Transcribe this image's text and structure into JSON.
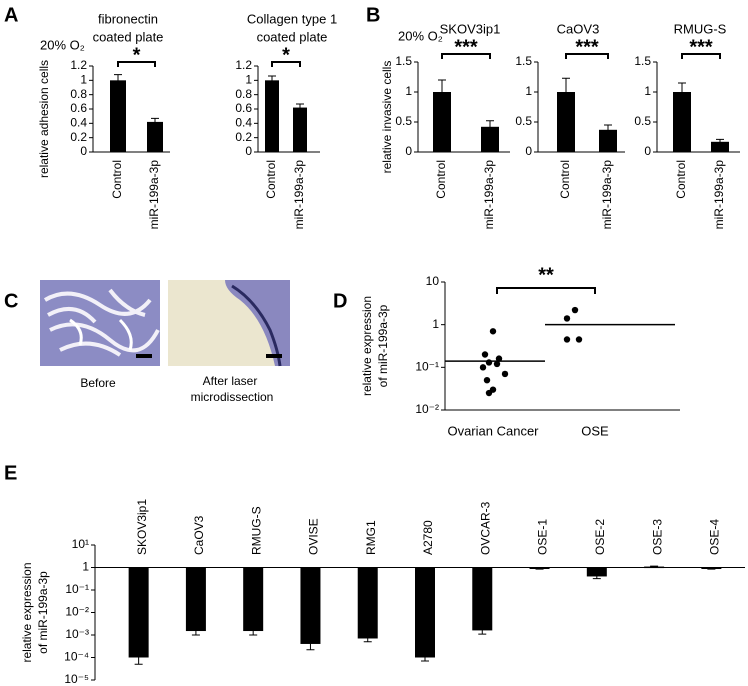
{
  "panels": [
    {
      "label": "A",
      "condition": "20% O₂"
    },
    {
      "label": "B",
      "condition": "20% O₂"
    },
    {
      "label": "C",
      "captions": [
        [
          "Before"
        ],
        [
          "After laser",
          "microdissection"
        ]
      ]
    },
    {
      "label": "D"
    },
    {
      "label": "E"
    }
  ],
  "chart_data": [
    {
      "type": "bar",
      "title": [
        "fibronectin",
        "coated plate"
      ],
      "ylabel": [
        "relative adhesion cells"
      ],
      "categories": [
        "Control",
        "miR-199a-3p"
      ],
      "values": [
        1.0,
        0.42
      ],
      "errors": [
        0.08,
        0.05
      ],
      "color": "#000000",
      "ylim": [
        0,
        1.2
      ],
      "yticks": [
        0,
        0.2,
        0.4,
        0.6,
        0.8,
        1,
        1.2
      ],
      "significance": "*"
    },
    {
      "type": "bar",
      "title": [
        "Collagen type 1",
        "coated plate"
      ],
      "categories": [
        "Control",
        "miR-199a-3p"
      ],
      "values": [
        1.0,
        0.62
      ],
      "errors": [
        0.06,
        0.05
      ],
      "color": "#000000",
      "ylim": [
        0,
        1.2
      ],
      "yticks": [
        0,
        0.2,
        0.4,
        0.6,
        0.8,
        1,
        1.2
      ],
      "significance": "*"
    },
    {
      "type": "bar",
      "title": [
        "SKOV3ip1"
      ],
      "ylabel": [
        "relative invasive cells"
      ],
      "categories": [
        "Control",
        "miR-199a-3p"
      ],
      "values": [
        1.0,
        0.42
      ],
      "errors": [
        0.2,
        0.1
      ],
      "color": "#000000",
      "ylim": [
        0,
        1.5
      ],
      "yticks": [
        0,
        0.5,
        1,
        1.5
      ],
      "significance": "***"
    },
    {
      "type": "bar",
      "title": [
        "CaOV3"
      ],
      "categories": [
        "Control",
        "miR-199a-3p"
      ],
      "values": [
        1.0,
        0.37
      ],
      "errors": [
        0.23,
        0.08
      ],
      "color": "#000000",
      "ylim": [
        0,
        1.5
      ],
      "yticks": [
        0,
        0.5,
        1,
        1.5
      ],
      "significance": "***"
    },
    {
      "type": "bar",
      "title": [
        "RMUG-S"
      ],
      "categories": [
        "Control",
        "miR-199a-3p"
      ],
      "values": [
        1.0,
        0.17
      ],
      "errors": [
        0.15,
        0.04
      ],
      "color": "#000000",
      "ylim": [
        0,
        1.5
      ],
      "yticks": [
        0,
        0.5,
        1,
        1.5
      ],
      "significance": "***"
    },
    {
      "type": "strip",
      "ylabel": [
        "relative expression",
        "of miR-199a-3p"
      ],
      "log": true,
      "categories": [
        "Ovarian Cancer",
        "OSE"
      ],
      "points": [
        [
          0.7,
          0.2,
          0.16,
          0.13,
          0.12,
          0.1,
          0.07,
          0.05,
          0.03,
          0.025
        ],
        [
          2.2,
          1.4,
          0.45,
          0.45
        ]
      ],
      "means": [
        0.14,
        1.0
      ],
      "color": "#000000",
      "ylim": [
        0.01,
        10
      ],
      "yticks": [
        {
          "value": 0.01,
          "label": "10⁻²"
        },
        {
          "value": 0.1,
          "label": "10⁻¹"
        },
        1,
        10
      ],
      "significance": "**"
    },
    {
      "type": "bar",
      "ylabel": [
        "relative expression",
        "of miR-199a-3p"
      ],
      "log": true,
      "categories": [
        "SKOV3ip1",
        "CaOV3",
        "RMUG-S",
        "OVISE",
        "RMG1",
        "A2780",
        "OVCAR-3",
        "OSE-1",
        "OSE-2",
        "OSE-3",
        "OSE-4"
      ],
      "values": [
        0.0001,
        0.0015,
        0.0015,
        0.0004,
        0.0007,
        0.0001,
        0.0016,
        0.9,
        0.4,
        1.1,
        0.9
      ],
      "errors": [
        5e-05,
        0.0005,
        0.0005,
        0.00018,
        0.0002,
        3e-05,
        0.0005,
        0.05,
        0.08,
        0.05,
        0.05
      ],
      "color": "#000000",
      "ylim": [
        1e-05,
        10
      ],
      "yticks": [
        {
          "value": 1e-05,
          "label": "10⁻⁵"
        },
        {
          "value": 0.0001,
          "label": "10⁻⁴"
        },
        {
          "value": 0.001,
          "label": "10⁻³"
        },
        {
          "value": 0.01,
          "label": "10⁻²"
        },
        {
          "value": 0.1,
          "label": "10⁻¹"
        },
        1,
        {
          "value": 10,
          "label": "10¹"
        }
      ]
    }
  ]
}
